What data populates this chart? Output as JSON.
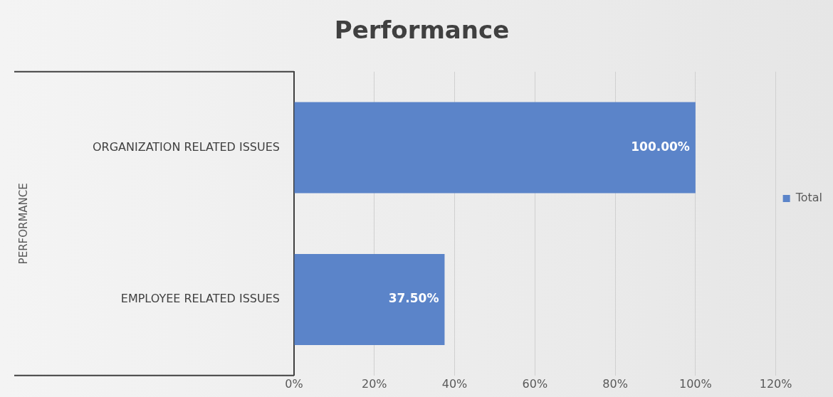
{
  "chart_data": {
    "type": "bar",
    "orientation": "horizontal",
    "title": "Performance",
    "annotations": [
      "PERFORMANCE"
    ],
    "categories": [
      "ORGANIZATION RELATED ISSUES",
      "EMPLOYEE RELATED ISSUES"
    ],
    "series": [
      {
        "name": "Total",
        "color": "#5b84c9",
        "values": [
          100,
          37.5
        ]
      }
    ],
    "value_labels": [
      "100.00%",
      "37.50%"
    ],
    "xlim": [
      0,
      120
    ],
    "xticks": [
      {
        "value": 0,
        "label": "0%"
      },
      {
        "value": 20,
        "label": "20%"
      },
      {
        "value": 40,
        "label": "40%"
      },
      {
        "value": 60,
        "label": "60%"
      },
      {
        "value": 80,
        "label": "80%"
      },
      {
        "value": 100,
        "label": "100%"
      },
      {
        "value": 120,
        "label": "120%"
      }
    ],
    "grid": "x",
    "legend": "right"
  }
}
